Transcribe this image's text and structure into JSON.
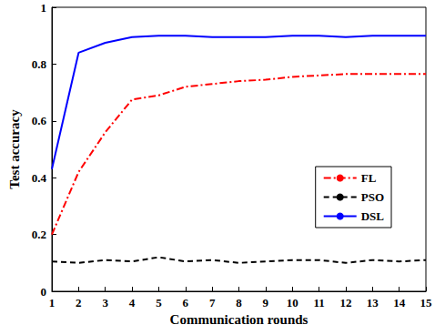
{
  "chart_data": {
    "type": "line",
    "x_label": "Communication rounds",
    "y_label": "Test accuracy",
    "x": [
      1,
      2,
      3,
      4,
      5,
      6,
      7,
      8,
      9,
      10,
      11,
      12,
      13,
      14,
      15
    ],
    "xlim": [
      1,
      15
    ],
    "xticks": [
      1,
      2,
      3,
      4,
      5,
      6,
      7,
      8,
      9,
      10,
      11,
      12,
      13,
      14,
      15
    ],
    "ylim": [
      0,
      1
    ],
    "yticks": [
      0,
      0.2,
      0.4,
      0.6,
      0.8,
      1
    ],
    "grid": false,
    "legend": "right",
    "series": [
      {
        "name": "FL",
        "color": "#ff0000",
        "line_style": "dashdot",
        "values": [
          0.2,
          0.42,
          0.56,
          0.675,
          0.69,
          0.72,
          0.73,
          0.74,
          0.745,
          0.755,
          0.76,
          0.765,
          0.765,
          0.765,
          0.765
        ]
      },
      {
        "name": "PSO",
        "color": "#000000",
        "line_style": "dashed",
        "values": [
          0.105,
          0.1,
          0.11,
          0.105,
          0.12,
          0.105,
          0.11,
          0.1,
          0.105,
          0.11,
          0.11,
          0.1,
          0.11,
          0.105,
          0.11
        ]
      },
      {
        "name": "DSL",
        "color": "#0000ff",
        "line_style": "solid",
        "values": [
          0.43,
          0.84,
          0.875,
          0.895,
          0.9,
          0.9,
          0.895,
          0.895,
          0.895,
          0.9,
          0.9,
          0.895,
          0.9,
          0.9,
          0.9
        ]
      }
    ]
  }
}
